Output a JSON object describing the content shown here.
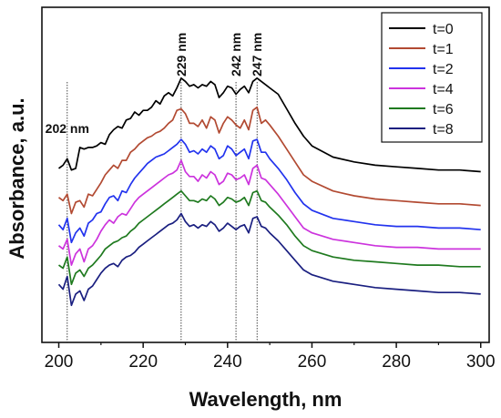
{
  "chart_data": {
    "type": "line",
    "xlabel": "Wavelength, nm",
    "ylabel": "Absorbance, a.u.",
    "xlim": [
      196,
      302
    ],
    "ylim": [
      -0.08,
      2.0
    ],
    "x_ticks": [
      200,
      220,
      240,
      260,
      280,
      300
    ],
    "y_ticks_labeled": false,
    "grid": false,
    "legend_position": "top-right",
    "annotations": [
      {
        "label": "202 nm",
        "x": 202
      },
      {
        "label": "229 nm",
        "x": 229
      },
      {
        "label": "242 nm",
        "x": 242
      },
      {
        "label": "247 nm",
        "x": 247
      }
    ],
    "x": [
      200,
      201,
      202,
      203,
      204,
      205,
      206,
      207,
      208,
      209,
      210,
      211,
      212,
      213,
      214,
      215,
      216,
      217,
      218,
      219,
      220,
      221,
      222,
      223,
      224,
      225,
      226,
      227,
      228,
      229,
      230,
      231,
      232,
      233,
      234,
      235,
      236,
      237,
      238,
      239,
      240,
      241,
      242,
      243,
      244,
      245,
      246,
      247,
      248,
      249,
      250,
      252,
      254,
      256,
      258,
      260,
      265,
      270,
      275,
      280,
      285,
      290,
      295,
      300
    ],
    "series": [
      {
        "name": "t=0",
        "color": "#000000",
        "values": [
          1.0,
          1.02,
          1.06,
          0.99,
          1.0,
          1.13,
          1.12,
          1.13,
          1.13,
          1.14,
          1.16,
          1.15,
          1.21,
          1.24,
          1.26,
          1.25,
          1.3,
          1.31,
          1.35,
          1.33,
          1.36,
          1.36,
          1.38,
          1.42,
          1.4,
          1.45,
          1.47,
          1.45,
          1.5,
          1.56,
          1.54,
          1.51,
          1.52,
          1.5,
          1.52,
          1.51,
          1.54,
          1.52,
          1.44,
          1.47,
          1.51,
          1.5,
          1.46,
          1.49,
          1.51,
          1.47,
          1.54,
          1.56,
          1.54,
          1.52,
          1.5,
          1.46,
          1.37,
          1.28,
          1.2,
          1.14,
          1.07,
          1.04,
          1.02,
          1.01,
          1.0,
          0.99,
          0.99,
          0.98
        ]
      },
      {
        "name": "t=1",
        "color": "#b24a32",
        "values": [
          0.82,
          0.8,
          0.84,
          0.72,
          0.79,
          0.8,
          0.76,
          0.84,
          0.83,
          0.87,
          0.91,
          0.96,
          0.99,
          1.02,
          1.0,
          1.05,
          1.05,
          1.1,
          1.12,
          1.15,
          1.17,
          1.19,
          1.2,
          1.22,
          1.23,
          1.25,
          1.28,
          1.3,
          1.36,
          1.37,
          1.34,
          1.28,
          1.28,
          1.26,
          1.3,
          1.25,
          1.32,
          1.3,
          1.22,
          1.28,
          1.32,
          1.3,
          1.27,
          1.25,
          1.3,
          1.24,
          1.36,
          1.38,
          1.28,
          1.3,
          1.27,
          1.2,
          1.12,
          1.04,
          0.96,
          0.92,
          0.86,
          0.83,
          0.81,
          0.8,
          0.79,
          0.78,
          0.78,
          0.77
        ]
      },
      {
        "name": "t=2",
        "color": "#2233ee",
        "values": [
          0.65,
          0.62,
          0.69,
          0.54,
          0.6,
          0.63,
          0.58,
          0.66,
          0.68,
          0.72,
          0.73,
          0.78,
          0.82,
          0.83,
          0.8,
          0.86,
          0.85,
          0.9,
          0.94,
          0.97,
          1.0,
          1.03,
          1.05,
          1.07,
          1.08,
          1.09,
          1.11,
          1.13,
          1.15,
          1.18,
          1.15,
          1.1,
          1.11,
          1.09,
          1.12,
          1.1,
          1.14,
          1.12,
          1.06,
          1.08,
          1.14,
          1.12,
          1.08,
          1.1,
          1.12,
          1.06,
          1.17,
          1.18,
          1.1,
          1.1,
          1.06,
          1.0,
          0.93,
          0.85,
          0.78,
          0.74,
          0.69,
          0.67,
          0.65,
          0.64,
          0.64,
          0.63,
          0.63,
          0.62
        ]
      },
      {
        "name": "t=4",
        "color": "#cc33dd",
        "values": [
          0.52,
          0.5,
          0.56,
          0.4,
          0.47,
          0.5,
          0.42,
          0.5,
          0.52,
          0.56,
          0.61,
          0.65,
          0.68,
          0.66,
          0.7,
          0.72,
          0.71,
          0.75,
          0.79,
          0.82,
          0.84,
          0.86,
          0.88,
          0.9,
          0.92,
          0.94,
          0.96,
          0.97,
          0.99,
          1.05,
          0.98,
          0.95,
          0.95,
          0.92,
          0.96,
          0.94,
          0.98,
          0.96,
          0.9,
          0.92,
          0.97,
          0.96,
          0.93,
          0.94,
          0.96,
          0.9,
          1.0,
          1.02,
          0.94,
          0.93,
          0.9,
          0.84,
          0.77,
          0.7,
          0.63,
          0.6,
          0.56,
          0.54,
          0.52,
          0.51,
          0.51,
          0.5,
          0.5,
          0.5
        ]
      },
      {
        "name": "t=6",
        "color": "#1f7a1f",
        "values": [
          0.4,
          0.38,
          0.45,
          0.28,
          0.35,
          0.37,
          0.33,
          0.38,
          0.4,
          0.43,
          0.46,
          0.5,
          0.52,
          0.54,
          0.55,
          0.57,
          0.58,
          0.61,
          0.63,
          0.66,
          0.68,
          0.7,
          0.72,
          0.74,
          0.76,
          0.78,
          0.8,
          0.82,
          0.84,
          0.86,
          0.83,
          0.8,
          0.8,
          0.79,
          0.81,
          0.8,
          0.83,
          0.81,
          0.77,
          0.79,
          0.82,
          0.81,
          0.79,
          0.8,
          0.82,
          0.77,
          0.85,
          0.86,
          0.8,
          0.79,
          0.76,
          0.71,
          0.65,
          0.58,
          0.52,
          0.49,
          0.45,
          0.43,
          0.42,
          0.41,
          0.4,
          0.4,
          0.39,
          0.39
        ]
      },
      {
        "name": "t=8",
        "color": "#1a1f80",
        "values": [
          0.28,
          0.25,
          0.33,
          0.15,
          0.22,
          0.24,
          0.18,
          0.25,
          0.27,
          0.31,
          0.35,
          0.38,
          0.4,
          0.41,
          0.39,
          0.43,
          0.45,
          0.46,
          0.48,
          0.51,
          0.53,
          0.55,
          0.57,
          0.59,
          0.61,
          0.63,
          0.65,
          0.66,
          0.68,
          0.72,
          0.67,
          0.64,
          0.65,
          0.63,
          0.65,
          0.64,
          0.67,
          0.65,
          0.61,
          0.63,
          0.66,
          0.64,
          0.62,
          0.64,
          0.65,
          0.6,
          0.69,
          0.7,
          0.64,
          0.63,
          0.6,
          0.55,
          0.49,
          0.43,
          0.37,
          0.34,
          0.3,
          0.28,
          0.26,
          0.25,
          0.24,
          0.23,
          0.23,
          0.22
        ]
      }
    ]
  }
}
